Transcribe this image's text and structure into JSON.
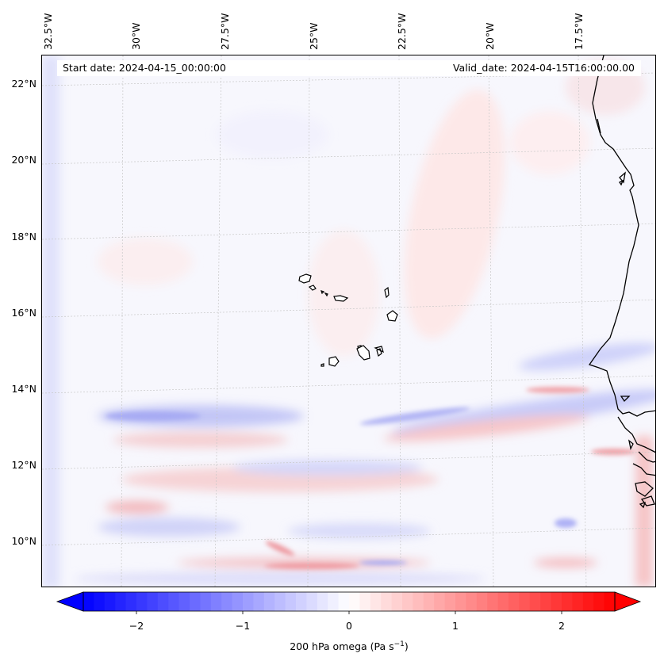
{
  "map": {
    "start_date": "Start date: 2024-04-15_00:00:00",
    "valid_date": "Valid_date: 2024-04-15T16:00:00.00",
    "lon_labels": [
      "32.5°W",
      "30°W",
      "27.5°W",
      "25°W",
      "22.5°W",
      "20°W",
      "17.5°W"
    ],
    "lat_labels": [
      "22°N",
      "20°N",
      "18°N",
      "16°N",
      "14°N",
      "12°N",
      "10°N"
    ],
    "field_name": "200 hPa omega",
    "features": [
      "Cape Verde islands",
      "West African coastline"
    ]
  },
  "colorbar": {
    "ticks": [
      "−2",
      "−1",
      "0",
      "1",
      "2"
    ],
    "tick_values": [
      -2,
      -1,
      0,
      1,
      2
    ],
    "range": [
      -2.5,
      2.5
    ],
    "label_main": "200 hPa omega (Pa s",
    "label_sup": "−1",
    "label_end": ")",
    "colors": {
      "negative": "#0000ff",
      "zero": "#ffffff",
      "positive": "#ff0000"
    }
  }
}
